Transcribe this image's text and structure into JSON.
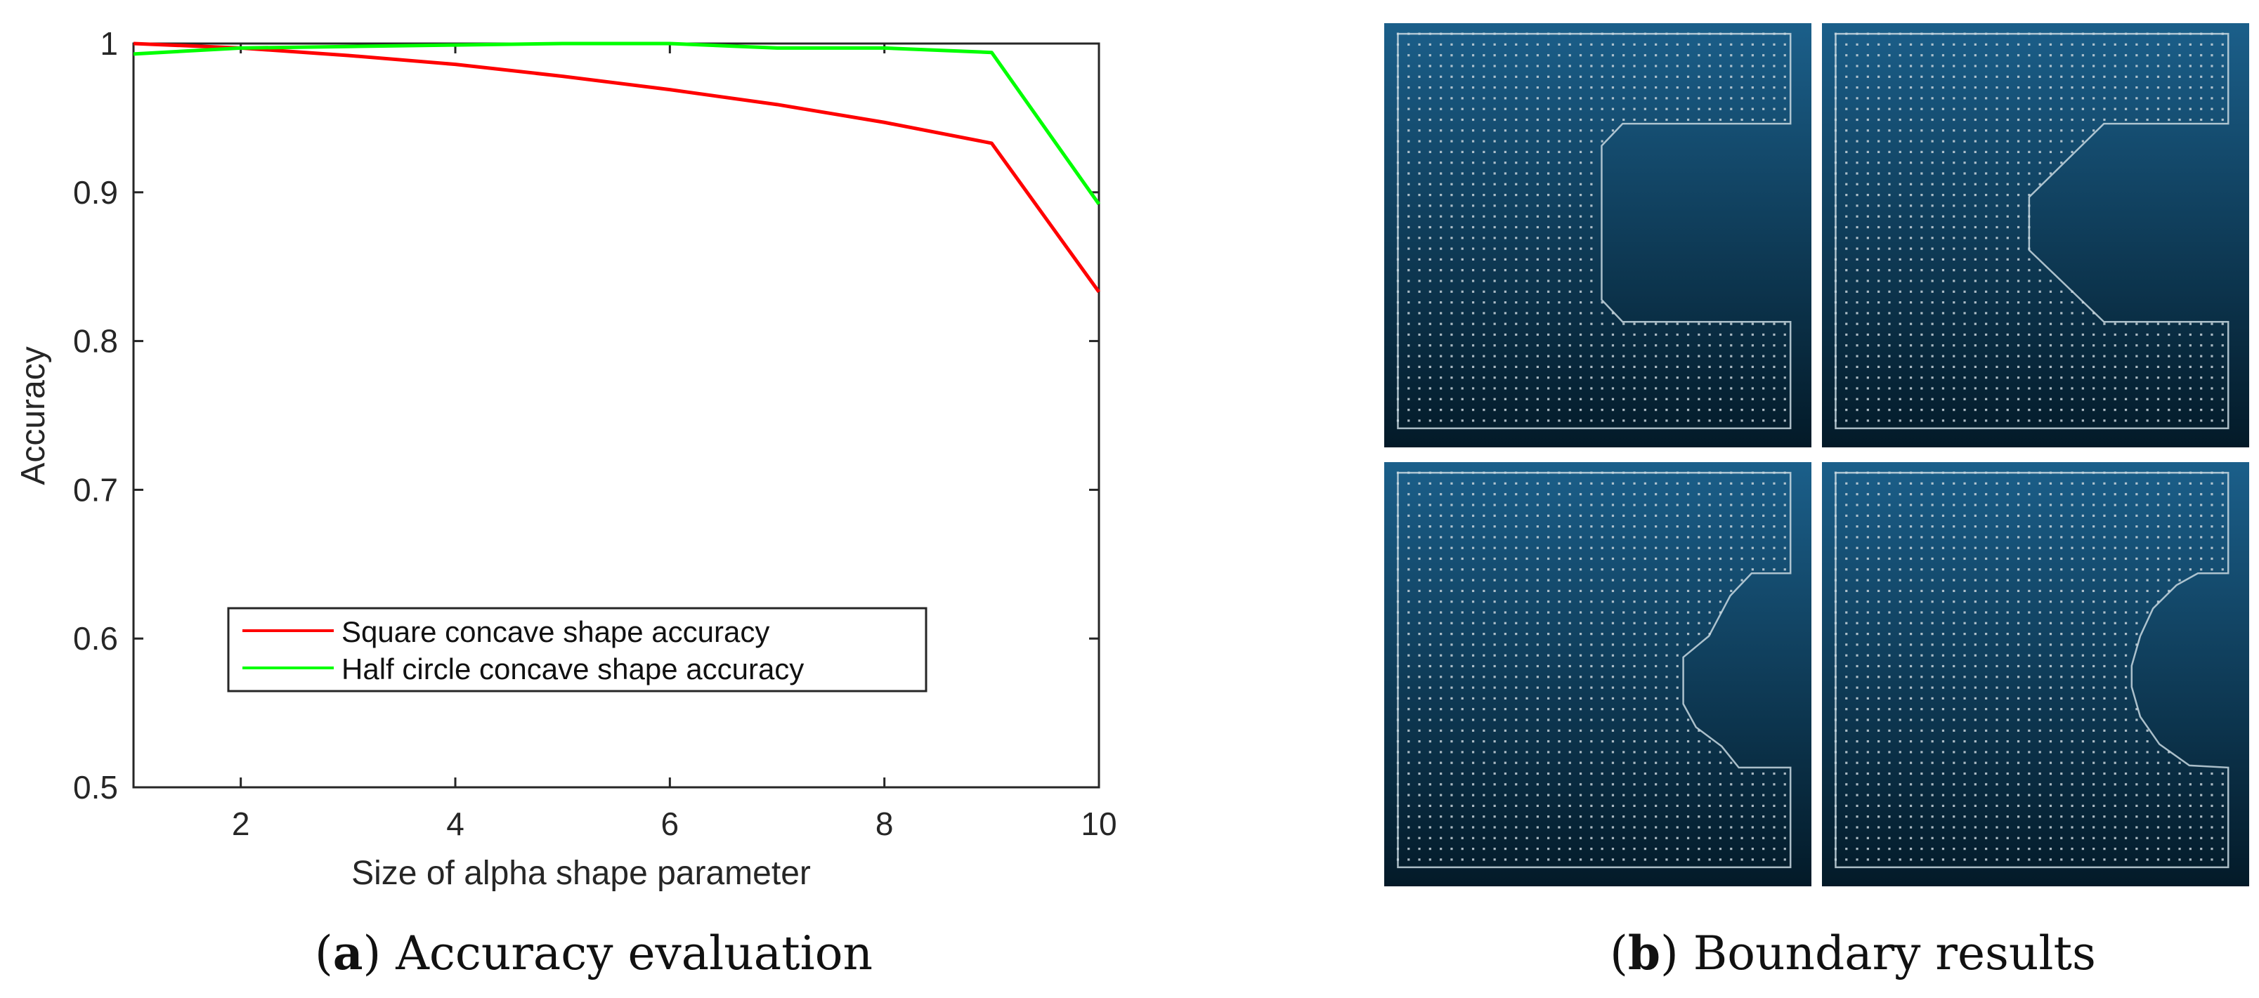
{
  "chart_data": {
    "type": "line",
    "title": "",
    "xlabel": "Size of alpha shape parameter",
    "ylabel": "Accuracy",
    "xlim": [
      1,
      10
    ],
    "ylim": [
      0.5,
      1
    ],
    "xticks": [
      2,
      4,
      6,
      8,
      10
    ],
    "xtick_labels": [
      "2",
      "4",
      "6",
      "8",
      "10"
    ],
    "yticks": [
      0.5,
      0.6,
      0.7,
      0.8,
      0.9,
      1
    ],
    "ytick_labels": [
      "0.5",
      "0.6",
      "0.7",
      "0.8",
      "0.9",
      "1"
    ],
    "grid": false,
    "legend_position": "lower-left",
    "x": [
      1,
      2,
      3,
      4,
      5,
      6,
      7,
      8,
      9,
      10
    ],
    "series": [
      {
        "name": "Square concave shape accuracy",
        "color": "#ff0000",
        "values": [
          1.0,
          0.997,
          0.992,
          0.986,
          0.978,
          0.969,
          0.959,
          0.947,
          0.933,
          0.833
        ]
      },
      {
        "name": "Half circle concave shape accuracy",
        "color": "#00ff00",
        "values": [
          0.993,
          0.997,
          0.998,
          0.999,
          1.0,
          1.0,
          0.997,
          0.997,
          0.994,
          0.892
        ]
      }
    ]
  },
  "captions": {
    "a_letter": "a",
    "a_text": " Accuracy evaluation",
    "b_letter": "b",
    "b_text": " Boundary results"
  },
  "boundary_results": {
    "panels": [
      {
        "name": "square-concave-boundary-1",
        "shape": "square"
      },
      {
        "name": "square-concave-boundary-2",
        "shape": "square-diagonal"
      },
      {
        "name": "half-circle-concave-boundary-1",
        "shape": "half-circle"
      },
      {
        "name": "half-circle-concave-boundary-2",
        "shape": "half-circle-smooth"
      }
    ],
    "gradient_top": "#1b5f8a",
    "gradient_bottom": "#031a28",
    "boundary_color": "#c8d8e0",
    "dot_color": "#c8d4da"
  }
}
